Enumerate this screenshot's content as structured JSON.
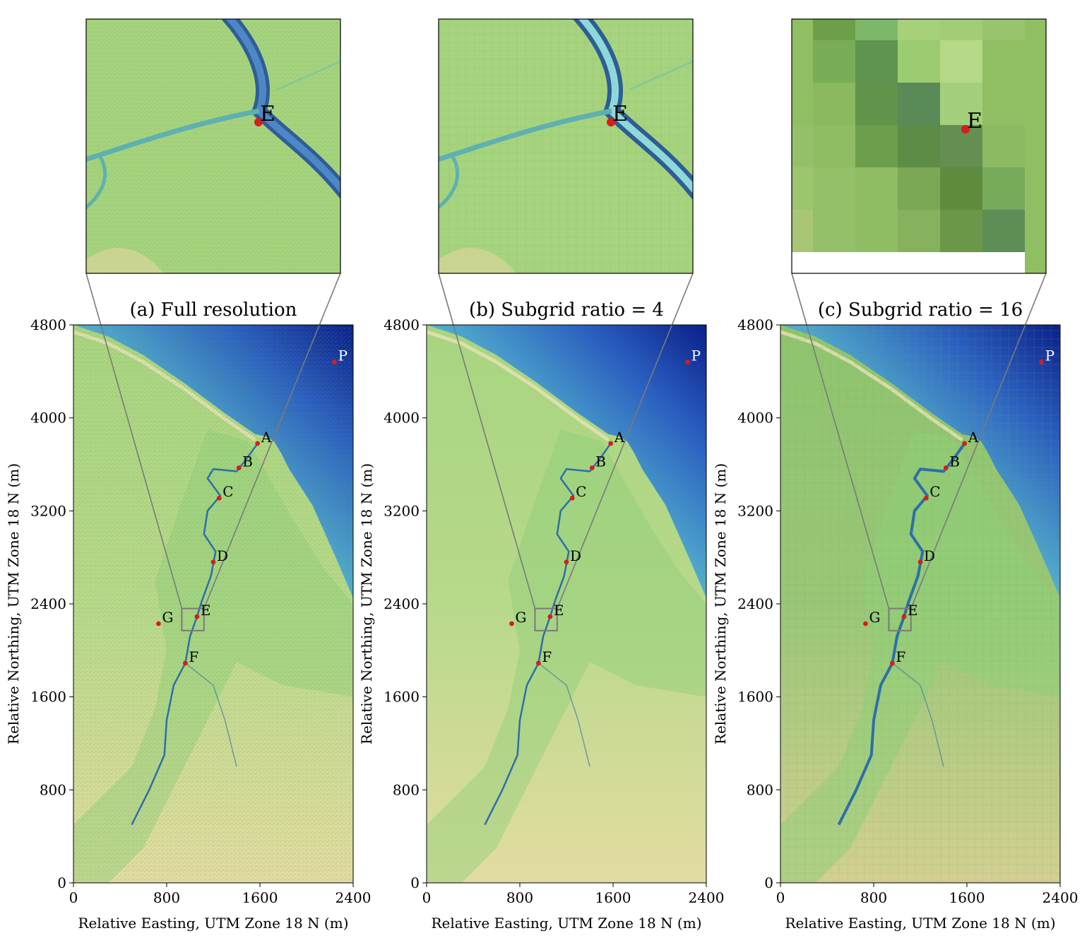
{
  "figure": {
    "panels": [
      {
        "id": "a",
        "title": "(a) Full resolution",
        "inset_style": "full"
      },
      {
        "id": "b",
        "title": "(b) Subgrid ratio = 4",
        "inset_style": "subgrid-4"
      },
      {
        "id": "c",
        "title": "(c) Subgrid ratio = 16",
        "inset_style": "subgrid-16"
      }
    ],
    "x_axis": {
      "label": "Relative Easting, UTM Zone 18 N (m)",
      "range": [
        0,
        2400
      ],
      "ticks": [
        0,
        800,
        1600,
        2400
      ],
      "tick_labels": [
        "0",
        "800",
        "1600",
        "2400"
      ]
    },
    "y_axis": {
      "label": "Relative Northing, UTM Zone 18 N (m)",
      "range": [
        0,
        4800
      ],
      "ticks": [
        0,
        800,
        1600,
        2400,
        3200,
        4000,
        4800
      ],
      "tick_labels": [
        "0",
        "800",
        "1600",
        "2400",
        "3200",
        "4000",
        "4800"
      ]
    },
    "points": [
      {
        "label": "A",
        "x": 1580,
        "y": 3780
      },
      {
        "label": "B",
        "x": 1420,
        "y": 3570
      },
      {
        "label": "C",
        "x": 1250,
        "y": 3310
      },
      {
        "label": "D",
        "x": 1200,
        "y": 2760
      },
      {
        "label": "E",
        "x": 1060,
        "y": 2290
      },
      {
        "label": "F",
        "x": 960,
        "y": 1890
      },
      {
        "label": "G",
        "x": 730,
        "y": 2230
      },
      {
        "label": "P",
        "x": 2240,
        "y": 4480
      }
    ],
    "zoom_box": {
      "x": [
        930,
        1120
      ],
      "y": [
        2170,
        2360
      ],
      "label": "E"
    },
    "colors": {
      "marker": "#d81c1c",
      "zoom_lines": "#7a7a7a",
      "land_light": "#e3dea2",
      "land_green": "#9fd07a",
      "wetland": "#7cc27a",
      "ocean_near": "#7ccfcf",
      "ocean_deep": "#0a1f8a",
      "channel": "#2c6fa8"
    }
  }
}
